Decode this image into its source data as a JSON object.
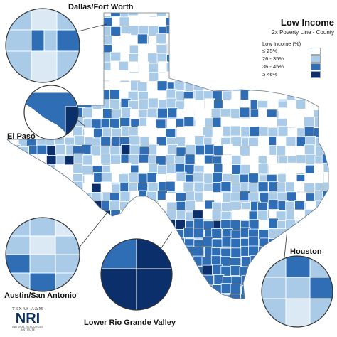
{
  "map": {
    "title": "Low Income",
    "subtitle": "2x Poverty Line - County",
    "legend_heading": "Low Income (%)",
    "legend": [
      {
        "label": "≤ 25%",
        "color": "#ffffff"
      },
      {
        "label": "26 - 35%",
        "color": "#a9cbe8"
      },
      {
        "label": "36 - 45%",
        "color": "#2f6db5"
      },
      {
        "label": "≥ 46%",
        "color": "#0a2f6b"
      }
    ],
    "insets": {
      "dallas": "Dallas/Fort Worth",
      "elpaso": "El Paso",
      "austin": "Austin/San Antonio",
      "rgv": "Lower Rio Grande Valley",
      "houston": "Houston"
    },
    "logo": {
      "line1": "TEXAS A&M",
      "line2": "NRI",
      "line3": "NATURAL RESOURCES INSTITUTE"
    },
    "colors": {
      "border": "#ffffff",
      "outline": "#6b7a8a",
      "inset_ring": "#333333"
    }
  }
}
